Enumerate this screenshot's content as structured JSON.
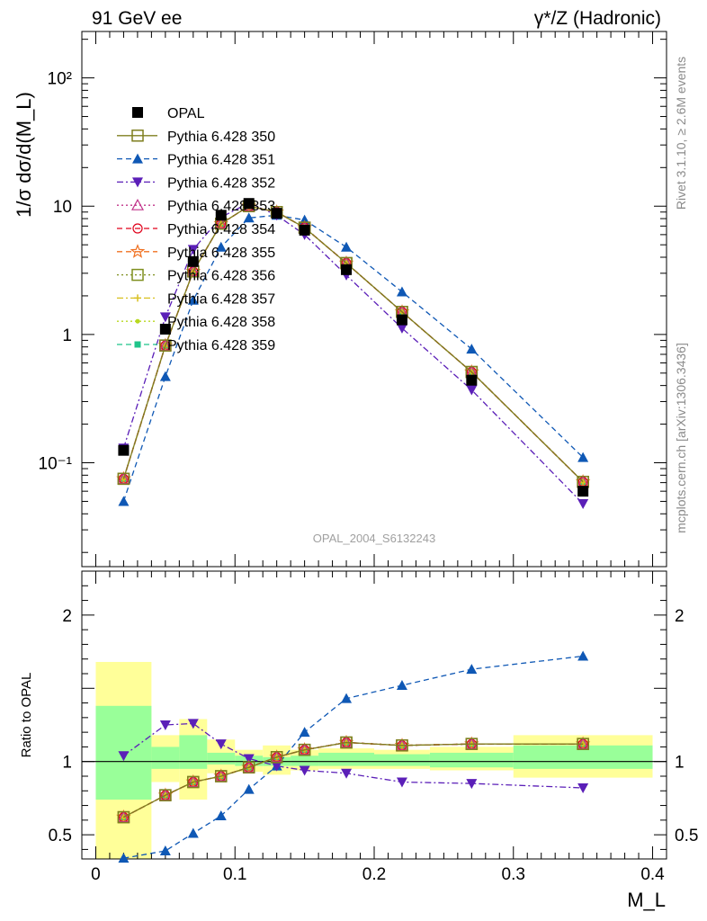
{
  "chart_data": [
    {
      "type": "line",
      "panel": "main",
      "title_left": "91 GeV ee",
      "title_right": "γ*/Z (Hadronic)",
      "ylabel": "1/σ dσ/d(M_L)",
      "yscale": "log",
      "ylim": [
        0.0155,
        230
      ],
      "xlim": [
        -0.01,
        0.41
      ],
      "y_tick_labels": [
        "10⁻¹",
        "1",
        "10",
        "10²"
      ],
      "analysis_label": "OPAL_2004_S6132243",
      "x": [
        0.02,
        0.05,
        0.07,
        0.09,
        0.11,
        0.13,
        0.15,
        0.18,
        0.22,
        0.27,
        0.35
      ],
      "data": {
        "name": "OPAL",
        "values": [
          0.125,
          1.1,
          3.7,
          8.5,
          10.5,
          8.8,
          6.5,
          3.2,
          1.3,
          0.44,
          0.06
        ]
      },
      "series": [
        {
          "name": "Pythia 6.428 350",
          "color": "#7f7f1f",
          "marker": "open-square",
          "dash": "solid",
          "values": [
            0.075,
            0.82,
            3.1,
            7.3,
            10.0,
            9.0,
            6.8,
            3.6,
            1.5,
            0.51,
            0.071
          ]
        },
        {
          "name": "Pythia 6.428 351",
          "color": "#0f58b5",
          "marker": "filled-triangle-up",
          "dash": "dashed",
          "values": [
            0.05,
            0.47,
            1.85,
            4.8,
            8.1,
            8.5,
            7.8,
            4.8,
            2.15,
            0.77,
            0.11
          ]
        },
        {
          "name": "Pythia 6.428 352",
          "color": "#5b1fb8",
          "marker": "filled-triangle-down",
          "dash": "dashdot",
          "values": [
            0.13,
            1.37,
            4.6,
            8.2,
            10.6,
            8.5,
            6.0,
            2.9,
            1.12,
            0.37,
            0.048
          ]
        },
        {
          "name": "Pythia 6.428 353",
          "color": "#c1338a",
          "marker": "open-triangle-up",
          "dash": "dotted",
          "values": [
            0.075,
            0.82,
            3.1,
            7.3,
            10.0,
            9.0,
            6.8,
            3.6,
            1.5,
            0.51,
            0.071
          ]
        },
        {
          "name": "Pythia 6.428 354",
          "color": "#e0001a",
          "marker": "open-circle",
          "dash": "dashed",
          "values": [
            0.075,
            0.82,
            3.1,
            7.3,
            10.0,
            9.0,
            6.8,
            3.6,
            1.5,
            0.51,
            0.071
          ]
        },
        {
          "name": "Pythia 6.428 355",
          "color": "#f07020",
          "marker": "open-star",
          "dash": "dashed",
          "values": [
            0.075,
            0.82,
            3.1,
            7.3,
            10.0,
            9.0,
            6.8,
            3.6,
            1.5,
            0.51,
            0.071
          ]
        },
        {
          "name": "Pythia 6.428 356",
          "color": "#7f8f1f",
          "marker": "open-square",
          "dash": "dotted",
          "values": [
            0.075,
            0.82,
            3.1,
            7.3,
            10.0,
            9.0,
            6.8,
            3.6,
            1.5,
            0.51,
            0.071
          ]
        },
        {
          "name": "Pythia 6.428 357",
          "color": "#d8c020",
          "marker": "small-cross",
          "dash": "dashdot",
          "values": [
            0.075,
            0.82,
            3.1,
            7.3,
            10.0,
            9.0,
            6.8,
            3.6,
            1.5,
            0.51,
            0.071
          ]
        },
        {
          "name": "Pythia 6.428 358",
          "color": "#b8d81f",
          "marker": "small-dot",
          "dash": "dotted",
          "values": [
            0.075,
            0.82,
            3.1,
            7.3,
            10.0,
            9.0,
            6.8,
            3.6,
            1.5,
            0.51,
            0.071
          ]
        },
        {
          "name": "Pythia 6.428 359",
          "color": "#1fc48a",
          "marker": "filled-square-small",
          "dash": "dashed",
          "values": [
            0.075,
            0.82,
            3.1,
            7.3,
            10.0,
            9.0,
            6.8,
            3.6,
            1.5,
            0.51,
            0.071
          ]
        }
      ]
    },
    {
      "type": "line",
      "panel": "ratio",
      "ylabel": "Ratio to OPAL",
      "xlabel": "M_L",
      "ylim": [
        0.335,
        2.3
      ],
      "xlim": [
        -0.01,
        0.41
      ],
      "x_ticks": [
        0,
        0.1,
        0.2,
        0.3,
        0.4
      ],
      "x_tick_labels": [
        "0",
        "0.1",
        "0.2",
        "0.3",
        "0.4"
      ],
      "y_ticks": [
        0.5,
        1,
        2
      ],
      "y_tick_labels": [
        "0.5",
        "1",
        "2"
      ],
      "bins": [
        [
          0.0,
          0.04
        ],
        [
          0.04,
          0.06
        ],
        [
          0.06,
          0.08
        ],
        [
          0.08,
          0.1
        ],
        [
          0.1,
          0.12
        ],
        [
          0.12,
          0.14
        ],
        [
          0.14,
          0.16
        ],
        [
          0.16,
          0.2
        ],
        [
          0.2,
          0.24
        ],
        [
          0.24,
          0.3
        ],
        [
          0.3,
          0.4
        ]
      ],
      "band_inner": [
        [
          0.74,
          1.38
        ],
        [
          0.95,
          1.1
        ],
        [
          0.95,
          1.18
        ],
        [
          0.98,
          1.06
        ],
        [
          0.97,
          1.04
        ],
        [
          0.97,
          1.03
        ],
        [
          0.97,
          1.04
        ],
        [
          0.97,
          1.06
        ],
        [
          0.97,
          1.05
        ],
        [
          0.96,
          1.06
        ],
        [
          0.95,
          1.11
        ]
      ],
      "band_outer": [
        [
          0.335,
          1.68
        ],
        [
          0.86,
          1.18
        ],
        [
          0.74,
          1.29
        ],
        [
          0.92,
          1.15
        ],
        [
          0.93,
          1.08
        ],
        [
          0.91,
          1.11
        ],
        [
          0.94,
          1.08
        ],
        [
          0.95,
          1.09
        ],
        [
          0.95,
          1.08
        ],
        [
          0.94,
          1.1
        ],
        [
          0.89,
          1.18
        ]
      ],
      "x": [
        0.02,
        0.05,
        0.07,
        0.09,
        0.11,
        0.13,
        0.15,
        0.18,
        0.22,
        0.27,
        0.35
      ],
      "series": [
        {
          "name": "Pythia 6.428 350",
          "values": [
            0.62,
            0.77,
            0.86,
            0.9,
            0.96,
            1.03,
            1.08,
            1.13,
            1.11,
            1.12,
            1.12
          ]
        },
        {
          "name": "Pythia 6.428 351",
          "values": [
            0.34,
            0.39,
            0.51,
            0.63,
            0.81,
            0.97,
            1.2,
            1.43,
            1.52,
            1.63,
            1.72
          ]
        },
        {
          "name": "Pythia 6.428 352",
          "values": [
            1.04,
            1.25,
            1.26,
            1.12,
            1.02,
            0.97,
            0.94,
            0.92,
            0.86,
            0.85,
            0.82
          ]
        },
        {
          "name": "Pythia 6.428 353",
          "values": [
            0.62,
            0.77,
            0.86,
            0.9,
            0.96,
            1.03,
            1.08,
            1.13,
            1.11,
            1.12,
            1.12
          ]
        },
        {
          "name": "Pythia 6.428 354",
          "values": [
            0.62,
            0.77,
            0.86,
            0.9,
            0.96,
            1.03,
            1.08,
            1.13,
            1.11,
            1.12,
            1.12
          ]
        },
        {
          "name": "Pythia 6.428 355",
          "values": [
            0.62,
            0.77,
            0.86,
            0.9,
            0.96,
            1.03,
            1.08,
            1.13,
            1.11,
            1.12,
            1.12
          ]
        },
        {
          "name": "Pythia 6.428 356",
          "values": [
            0.62,
            0.77,
            0.86,
            0.9,
            0.96,
            1.03,
            1.08,
            1.13,
            1.11,
            1.12,
            1.12
          ]
        },
        {
          "name": "Pythia 6.428 357",
          "values": [
            0.62,
            0.77,
            0.86,
            0.9,
            0.96,
            1.03,
            1.08,
            1.13,
            1.11,
            1.12,
            1.12
          ]
        },
        {
          "name": "Pythia 6.428 358",
          "values": [
            0.62,
            0.77,
            0.86,
            0.9,
            0.96,
            1.03,
            1.08,
            1.13,
            1.11,
            1.12,
            1.12
          ]
        },
        {
          "name": "Pythia 6.428 359",
          "values": [
            0.62,
            0.77,
            0.86,
            0.9,
            0.96,
            1.03,
            1.08,
            1.13,
            1.11,
            1.12,
            1.12
          ]
        }
      ]
    }
  ],
  "side_labels": {
    "rivet": "Rivet 3.1.10, ≥ 2.6M events",
    "mcplots": "mcplots.cern.ch [arXiv:1306.3436]"
  }
}
